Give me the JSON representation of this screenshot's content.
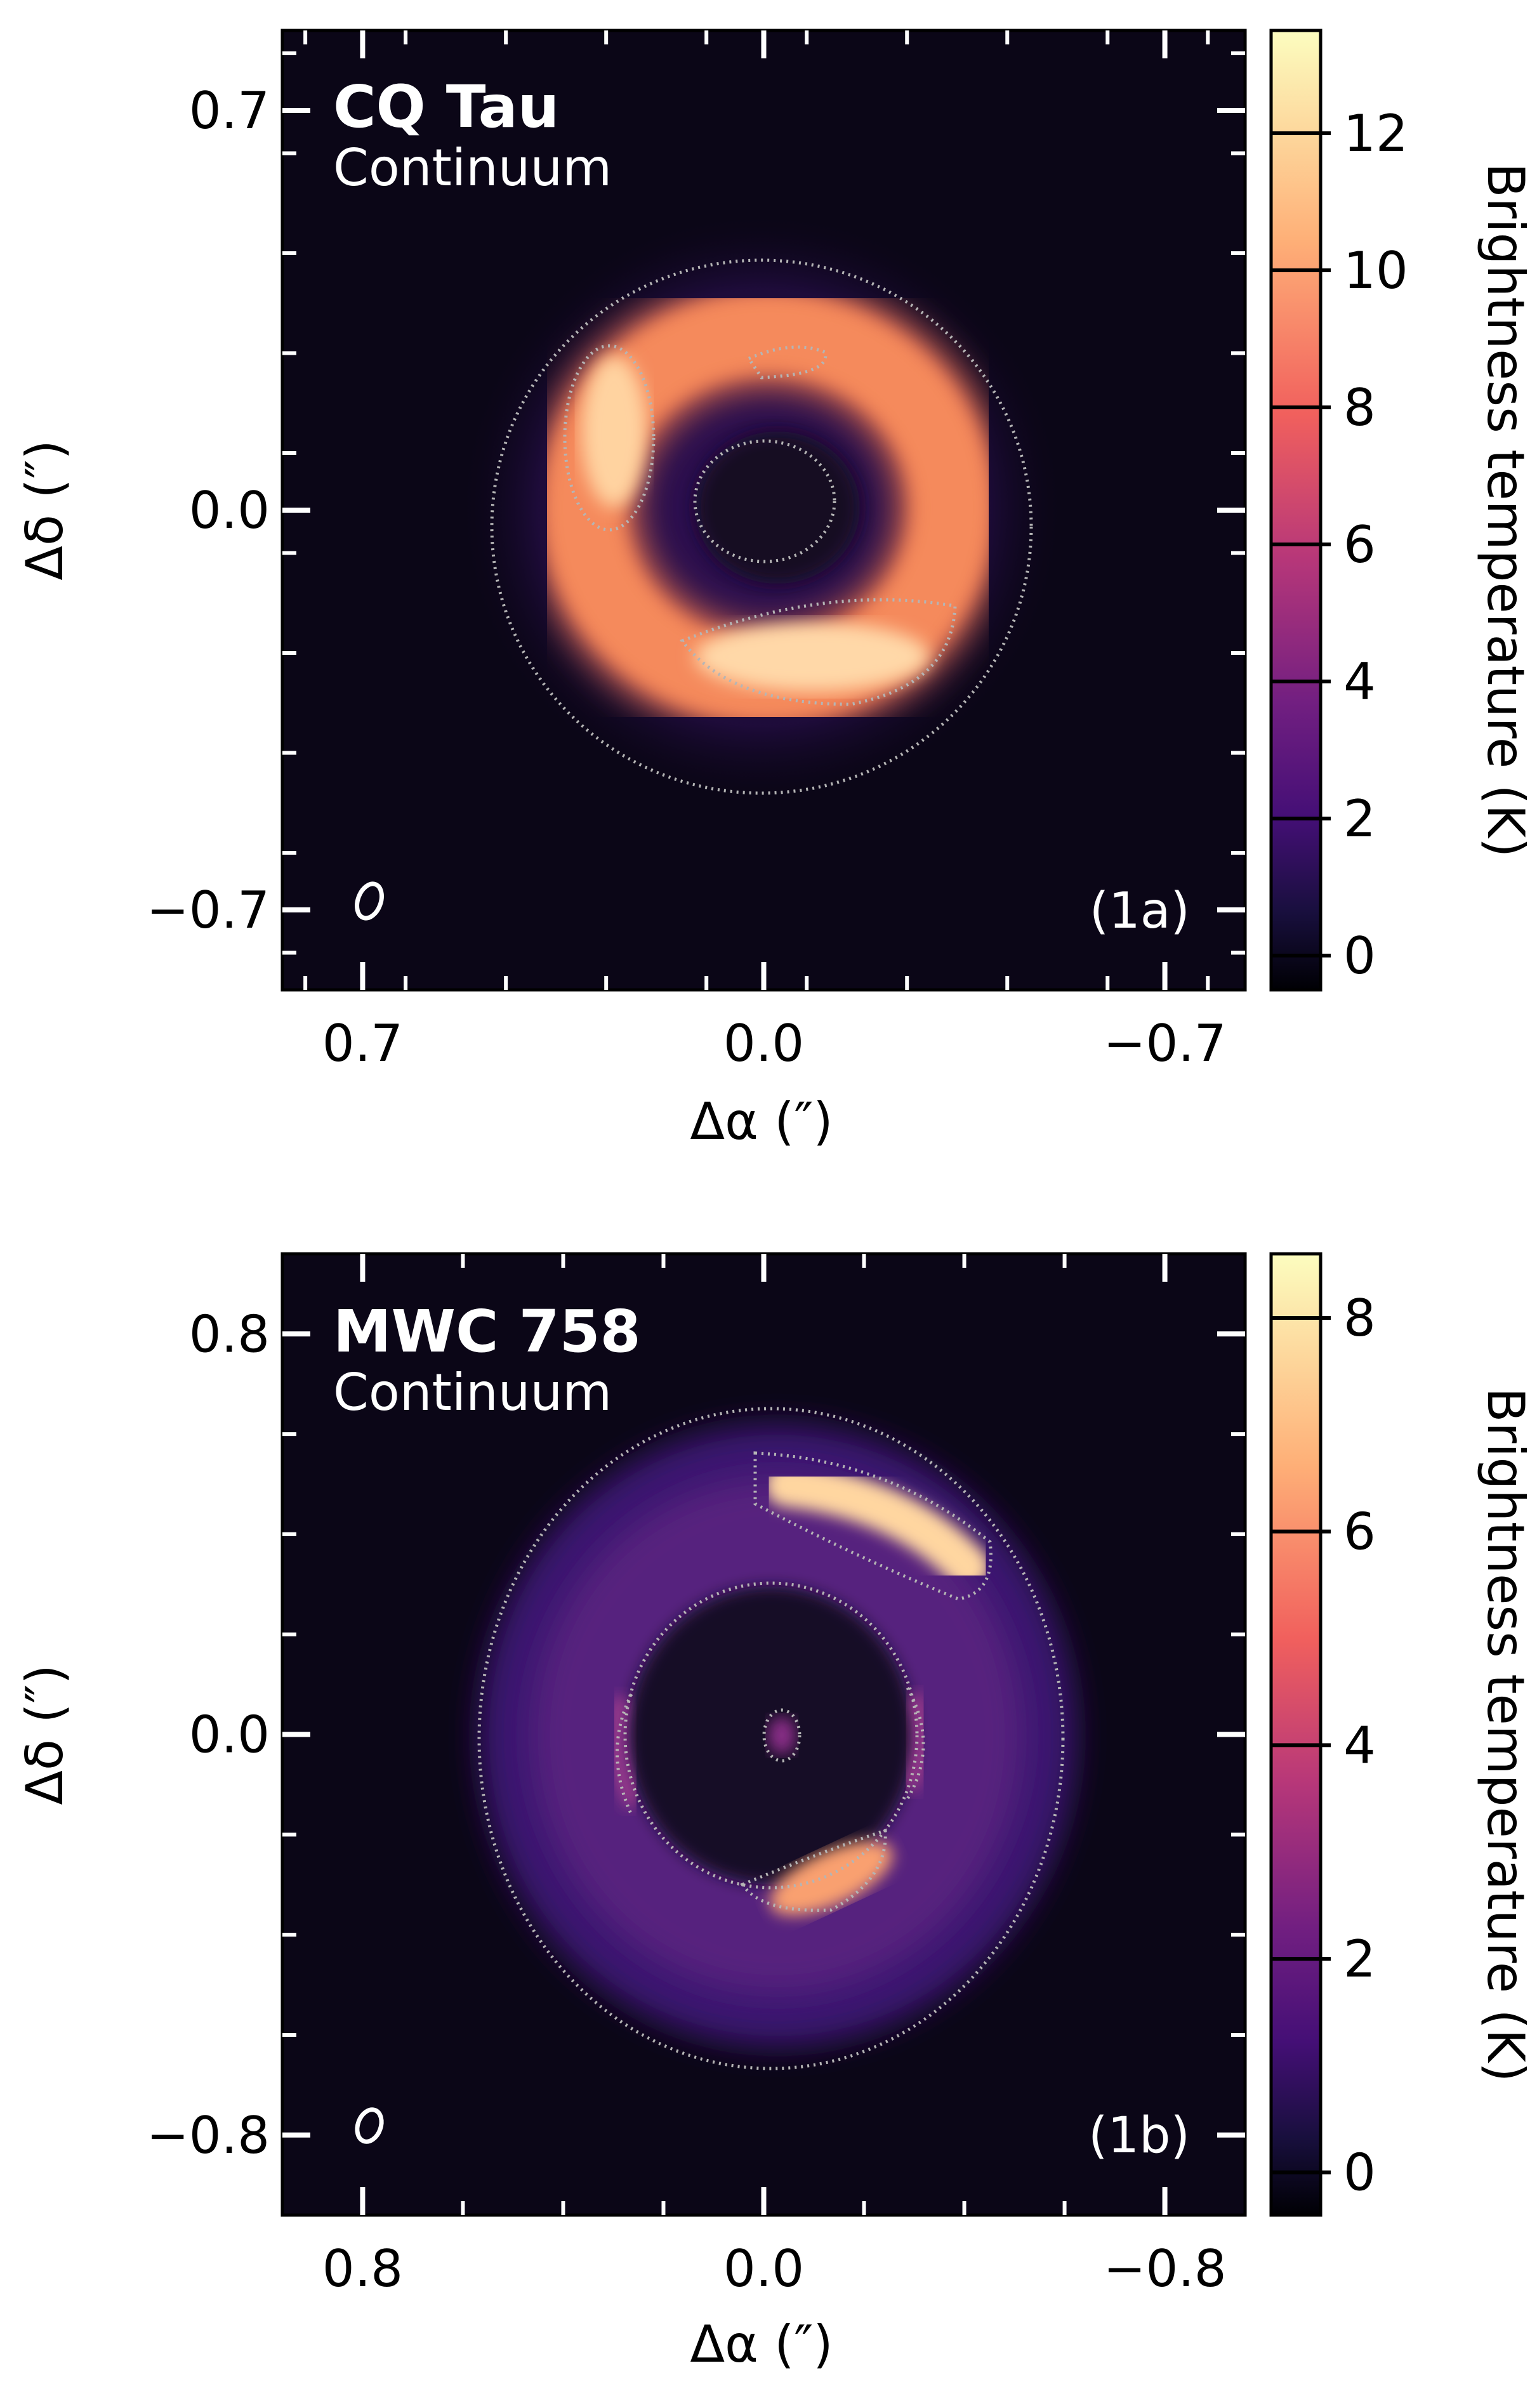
{
  "chart_data": [
    {
      "type": "heatmap",
      "target": "CQ Tau",
      "subtitle": "Continuum",
      "panel_label": "(1a)",
      "xlabel": "Δα (″)",
      "ylabel": "Δδ (″)",
      "x_ticks": [
        "0.7",
        "0.0",
        "−0.7"
      ],
      "y_ticks": [
        "0.7",
        "0.0",
        "−0.7"
      ],
      "x_tick_values": [
        0.7,
        0.0,
        -0.7
      ],
      "y_tick_values": [
        0.7,
        0.0,
        -0.7
      ],
      "xlim": [
        0.84,
        -0.84
      ],
      "ylim": [
        -0.84,
        0.84
      ],
      "colorbar": {
        "label": "Brightness temperature (K)",
        "ticks": [
          "0",
          "2",
          "4",
          "6",
          "8",
          "10",
          "12"
        ],
        "tick_values": [
          0,
          2,
          4,
          6,
          8,
          10,
          12
        ],
        "range": [
          -0.5,
          13.5
        ],
        "colormap": "magma"
      },
      "features": [
        {
          "name": "ring",
          "center": [
            0.0,
            0.0
          ],
          "radius_arcsec": 0.34,
          "peak_K": 13
        },
        {
          "name": "inner cavity",
          "radius_arcsec": 0.1
        },
        {
          "name": "bright arc east",
          "position": [
            0.28,
            0.11
          ]
        },
        {
          "name": "bright arc south",
          "position": [
            -0.1,
            -0.25
          ]
        }
      ],
      "beam": {
        "position": "bottom-left"
      }
    },
    {
      "type": "heatmap",
      "target": "MWC 758",
      "subtitle": "Continuum",
      "panel_label": "(1b)",
      "xlabel": "Δα (″)",
      "ylabel": "Δδ (″)",
      "x_ticks": [
        "0.8",
        "0.0",
        "−0.8"
      ],
      "y_ticks": [
        "0.8",
        "0.0",
        "−0.8"
      ],
      "x_tick_values": [
        0.8,
        0.0,
        -0.8
      ],
      "y_tick_values": [
        0.8,
        0.0,
        -0.8
      ],
      "xlim": [
        0.96,
        -0.96
      ],
      "ylim": [
        -0.96,
        0.96
      ],
      "colorbar": {
        "label": "Brightness temperature (K)",
        "ticks": [
          "0",
          "2",
          "4",
          "6",
          "8"
        ],
        "tick_values": [
          0,
          2,
          4,
          6,
          8
        ],
        "range": [
          -0.4,
          8.6
        ],
        "colormap": "magma"
      },
      "features": [
        {
          "name": "outer disk",
          "radius_arcsec": 0.58
        },
        {
          "name": "inner cavity",
          "radius_arcsec": 0.25
        },
        {
          "name": "bright arc north-west",
          "position": [
            -0.24,
            0.45
          ],
          "peak_K": 8.4
        },
        {
          "name": "bright arc south",
          "position": [
            -0.12,
            -0.32
          ]
        },
        {
          "name": "central source",
          "position": [
            -0.04,
            0.0
          ]
        }
      ],
      "beam": {
        "position": "bottom-left"
      }
    }
  ]
}
